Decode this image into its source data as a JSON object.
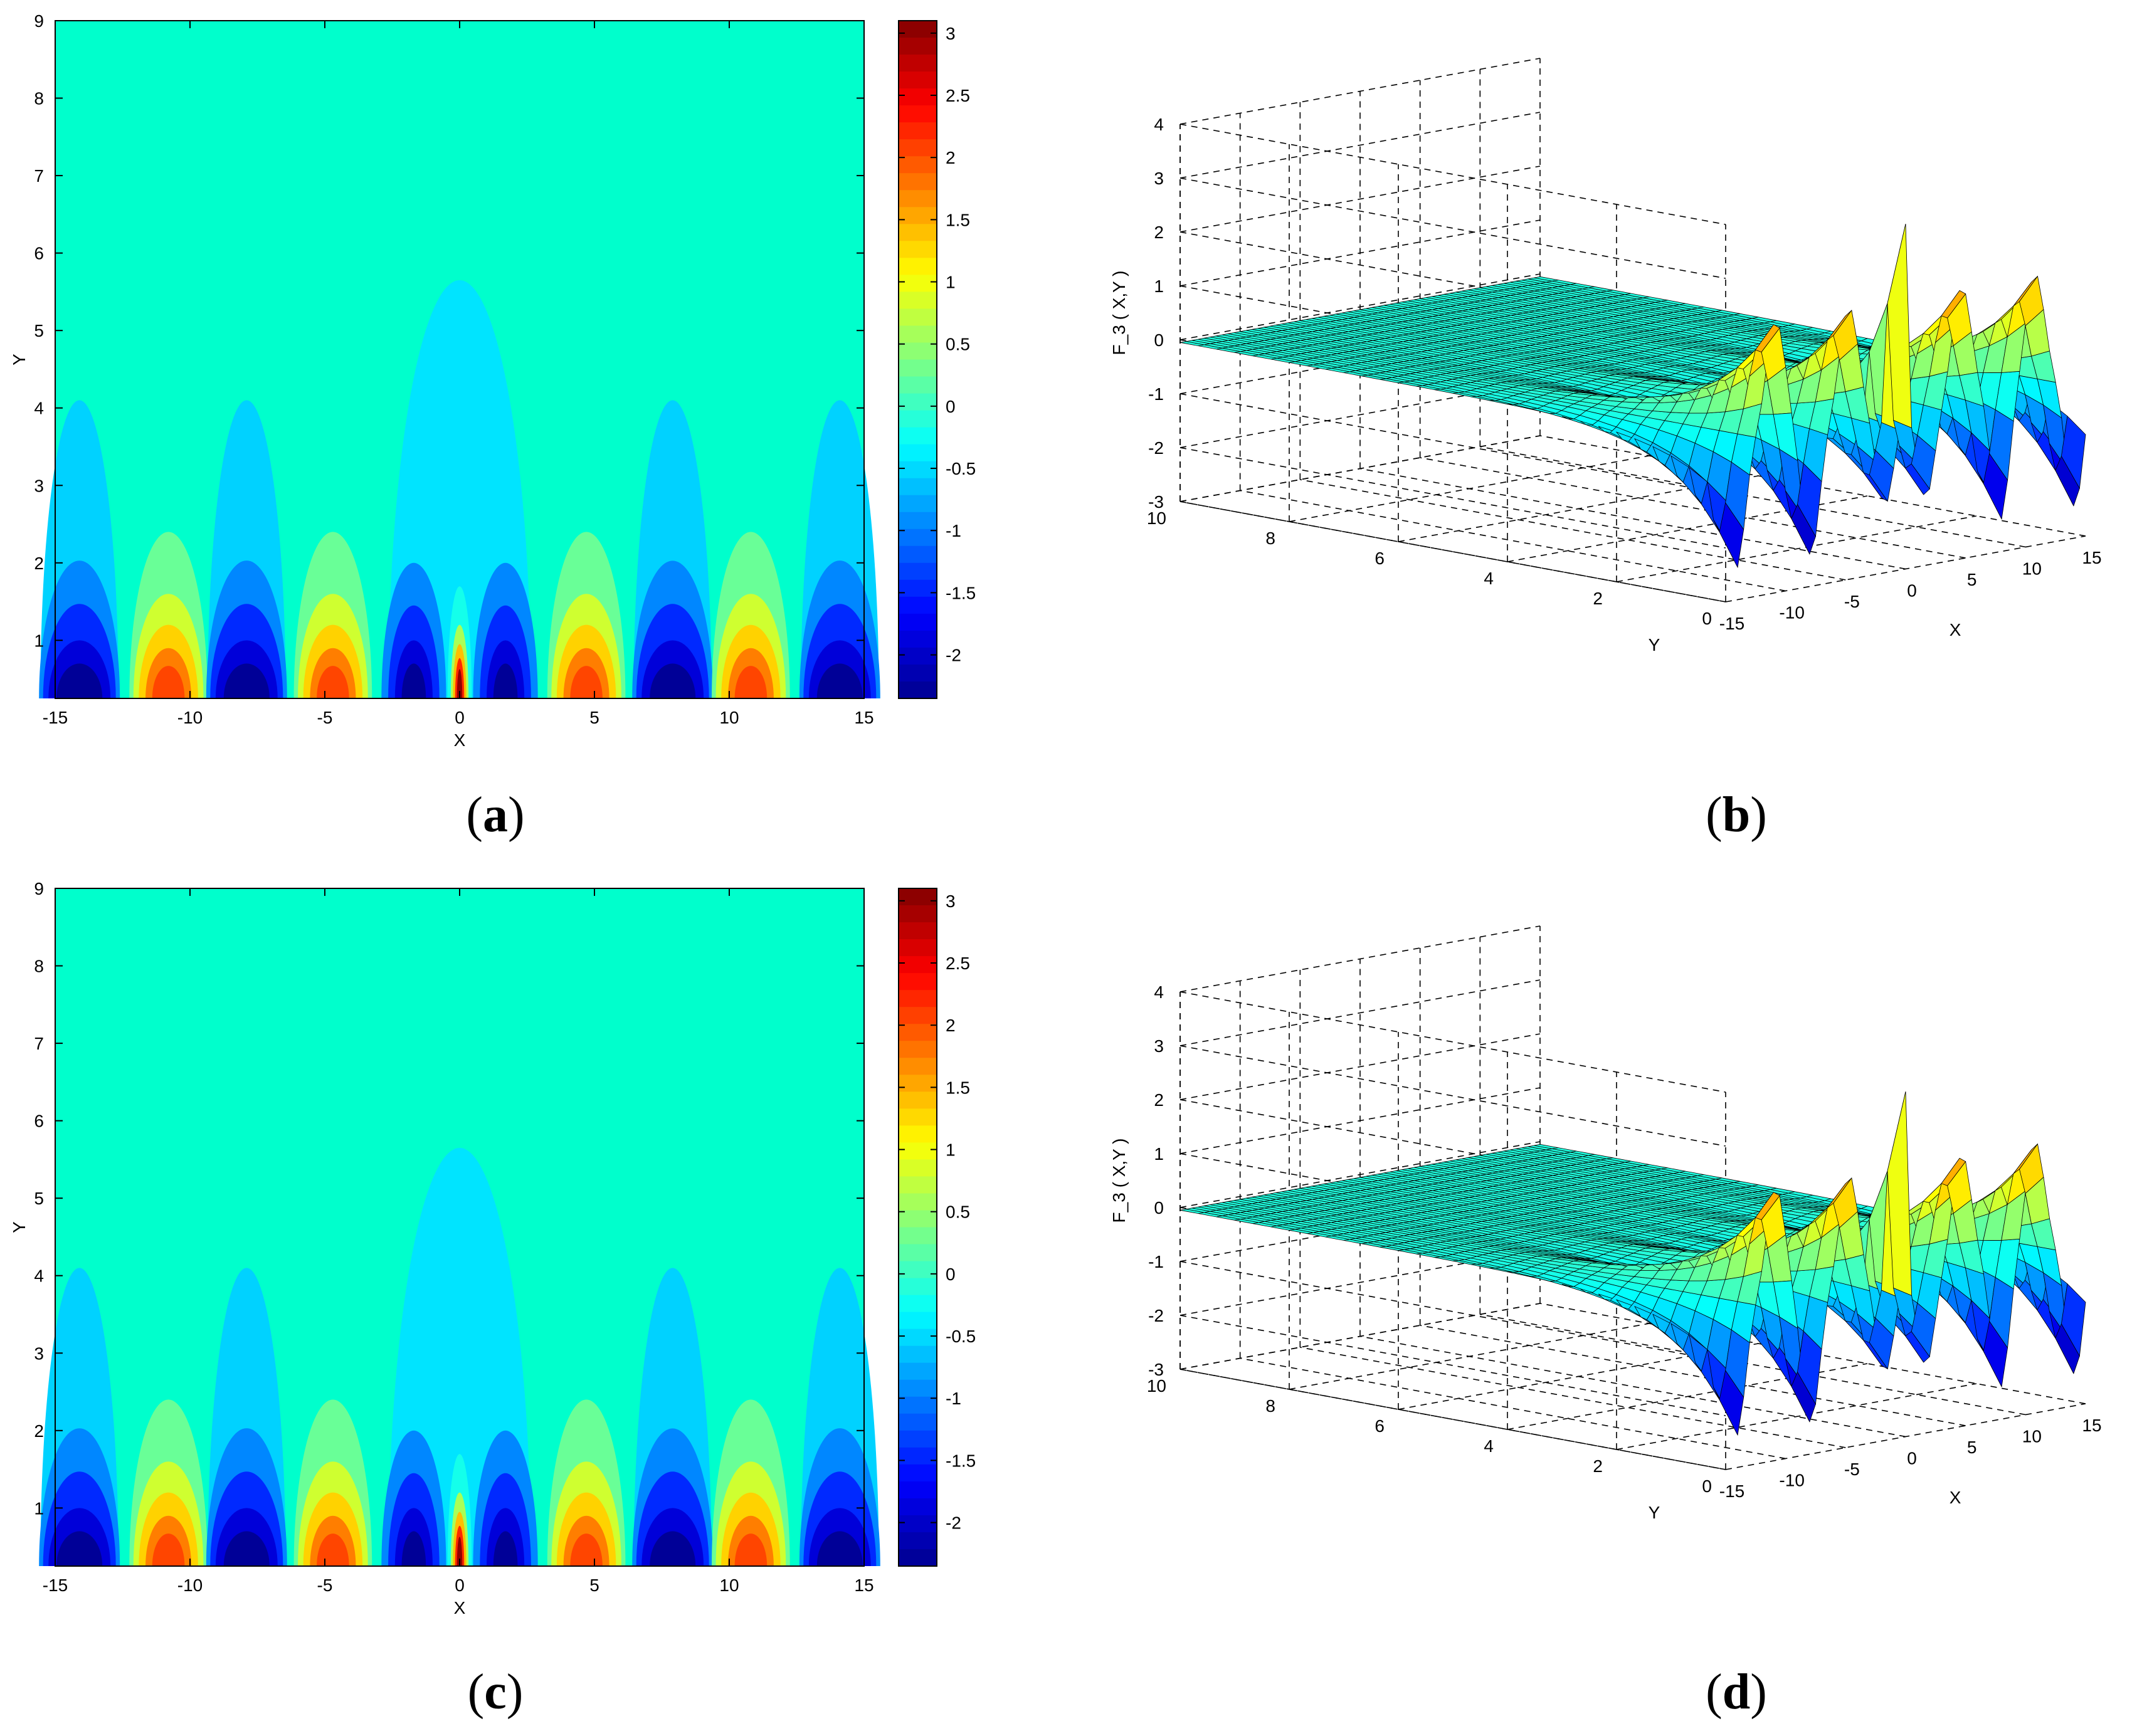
{
  "chart_data": [
    {
      "panel": "a",
      "type": "contour",
      "title": "",
      "xlabel": "X",
      "ylabel": "Y",
      "xlim": [
        -15,
        15
      ],
      "ylim": [
        0.25,
        9
      ],
      "xticks": [
        "-15",
        "-10",
        "-5",
        "0",
        "5",
        "10",
        "15"
      ],
      "yticks": [
        "1",
        "2",
        "3",
        "4",
        "5",
        "6",
        "7",
        "8",
        "9"
      ],
      "colorbar": {
        "range": [
          -2.35,
          3.1
        ],
        "ticks": [
          "3",
          "2.5",
          "2",
          "1.5",
          "1",
          "0.5",
          "0",
          "-0.5",
          "-1",
          "-1.5",
          "-2"
        ]
      },
      "caption": "(a)",
      "features": [
        {
          "x": -14.1,
          "kind": "trough",
          "value": -2.3,
          "extent_y": 3.85
        },
        {
          "x": -10.8,
          "kind": "peak",
          "value": 2.0,
          "extent_y": 2.1
        },
        {
          "x": -7.9,
          "kind": "trough",
          "value": -2.3,
          "extent_y": 3.8
        },
        {
          "x": -4.7,
          "kind": "peak",
          "value": 2.0,
          "extent_y": 2.15
        },
        {
          "x": -1.7,
          "kind": "trough",
          "value": -1.5,
          "extent_y": 1.75
        },
        {
          "x": 0,
          "kind": "central_lobe",
          "value": -0.4,
          "extent_y": 5.4
        },
        {
          "x": 0,
          "kind": "spike",
          "value": 3.1,
          "extent_y": 1.45
        },
        {
          "x": 1.7,
          "kind": "trough",
          "value": -1.5,
          "extent_y": 1.75
        },
        {
          "x": 4.7,
          "kind": "peak",
          "value": 2.0,
          "extent_y": 2.15
        },
        {
          "x": 7.9,
          "kind": "trough",
          "value": -2.3,
          "extent_y": 3.8
        },
        {
          "x": 10.8,
          "kind": "peak",
          "value": 2.0,
          "extent_y": 2.1
        },
        {
          "x": 14.1,
          "kind": "trough",
          "value": -2.3,
          "extent_y": 3.85
        }
      ]
    },
    {
      "panel": "b",
      "type": "surface",
      "title": "",
      "xlabel": "X",
      "ylabel": "Y",
      "zlabel": "F_3 ( X,Y )",
      "xticks": [
        "-15",
        "-10",
        "-5",
        "0",
        "5",
        "10",
        "15"
      ],
      "yticks": [
        "0",
        "2",
        "4",
        "6",
        "8",
        "10"
      ],
      "zticks": [
        "4",
        "3",
        "2",
        "1",
        "0",
        "-1",
        "-2",
        "-3"
      ],
      "zlim": [
        -3,
        4
      ],
      "caption": "(b)"
    },
    {
      "panel": "c",
      "type": "contour",
      "title": "",
      "xlabel": "X",
      "ylabel": "Y",
      "xlim": [
        -15,
        15
      ],
      "ylim": [
        0.25,
        9
      ],
      "xticks": [
        "-15",
        "-10",
        "-5",
        "0",
        "5",
        "10",
        "15"
      ],
      "yticks": [
        "1",
        "2",
        "3",
        "4",
        "5",
        "6",
        "7",
        "8",
        "9"
      ],
      "colorbar": {
        "range": [
          -2.35,
          3.1
        ],
        "ticks": [
          "3",
          "2.5",
          "2",
          "1.5",
          "1",
          "0.5",
          "0",
          "-0.5",
          "-1",
          "-1.5",
          "-2"
        ]
      },
      "caption": "(c)"
    },
    {
      "panel": "d",
      "type": "surface",
      "title": "",
      "xlabel": "X",
      "ylabel": "Y",
      "zlabel": "F_3 ( X,Y )",
      "xticks": [
        "-15",
        "-10",
        "-5",
        "0",
        "5",
        "10",
        "15"
      ],
      "yticks": [
        "0",
        "2",
        "4",
        "6",
        "8",
        "10"
      ],
      "zticks": [
        "4",
        "3",
        "2",
        "1",
        "0",
        "-1",
        "-2",
        "-3"
      ],
      "zlim": [
        -3,
        4
      ],
      "caption": "(d)"
    }
  ],
  "colors": {
    "background_field": "#00ffcc",
    "jet": [
      "#00008f",
      "#0000ff",
      "#0080ff",
      "#00ffff",
      "#80ff80",
      "#ffff00",
      "#ff8000",
      "#ff0000",
      "#800000"
    ]
  },
  "captions": {
    "a": {
      "open": "(",
      "letter": "a",
      "close": ")"
    },
    "b": {
      "open": "(",
      "letter": "b",
      "close": ")"
    },
    "c": {
      "open": "(",
      "letter": "c",
      "close": ")"
    },
    "d": {
      "open": "(",
      "letter": "d",
      "close": ")"
    }
  }
}
